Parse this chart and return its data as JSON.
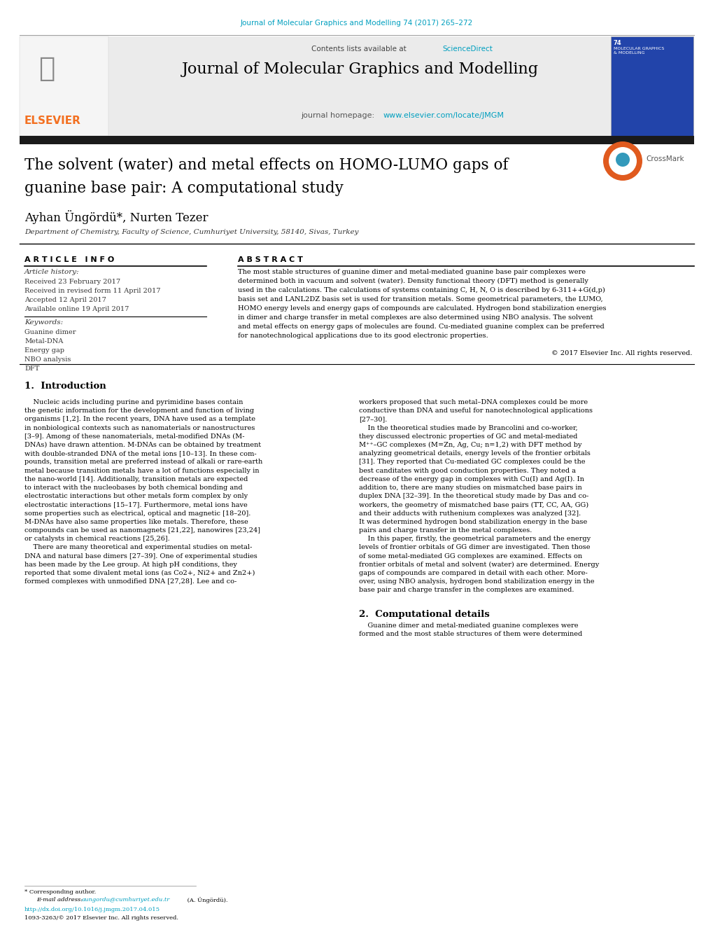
{
  "page_width": 10.2,
  "page_height": 13.51,
  "dpi": 100,
  "bg_color": "#ffffff",
  "header_citation": "Journal of Molecular Graphics and Modelling 74 (2017) 265–272",
  "header_citation_color": "#009FBF",
  "journal_header_bg": "#ebebeb",
  "journal_title": "Journal of Molecular Graphics and Modelling",
  "journal_title_color": "#000000",
  "journal_homepage_url": "www.elsevier.com/locate/JMGM",
  "journal_homepage_url_color": "#009FBF",
  "elsevier_color": "#F37021",
  "header_bar_color": "#1a1a1a",
  "article_title_line1": "The solvent (water) and metal effects on HOMO-LUMO gaps of",
  "article_title_line2": "guanine base pair: A computational study",
  "authors": "Ayhan Üngördü*, Nurten Tezer",
  "affiliation": "Department of Chemistry, Faculty of Science, Cumhuriyet University, 58140, Sivas, Turkey",
  "article_info_label": "A R T I C L E   I N F O",
  "abstract_label": "A B S T R A C T",
  "article_history_label": "Article history:",
  "received": "Received 23 February 2017",
  "received_revised": "Received in revised form 11 April 2017",
  "accepted": "Accepted 12 April 2017",
  "available": "Available online 19 April 2017",
  "keywords_label": "Keywords:",
  "keywords": [
    "Guanine dimer",
    "Metal-DNA",
    "Energy gap",
    "NBO analysis",
    "DFT"
  ],
  "abstract_lines": [
    "The most stable structures of guanine dimer and metal-mediated guanine base pair complexes were",
    "determined both in vacuum and solvent (water). Density functional theory (DFT) method is generally",
    "used in the calculations. The calculations of systems containing C, H, N, O is described by 6-311++G(d,p)",
    "basis set and LANL2DZ basis set is used for transition metals. Some geometrical parameters, the LUMO,",
    "HOMO energy levels and energy gaps of compounds are calculated. Hydrogen bond stabilization energies",
    "in dimer and charge transfer in metal complexes are also determined using NBO analysis. The solvent",
    "and metal effects on energy gaps of molecules are found. Cu-mediated guanine complex can be preferred",
    "for nanotechnological applications due to its good electronic properties."
  ],
  "copyright": "© 2017 Elsevier Inc. All rights reserved.",
  "section1_title": "1.  Introduction",
  "intro_col1_lines": [
    "    Nucleic acids including purine and pyrimidine bases contain",
    "the genetic information for the development and function of living",
    "organisms [1,2]. In the recent years, DNA have used as a template",
    "in nonbiological contexts such as nanomaterials or nanostructures",
    "[3–9]. Among of these nanomaterials, metal-modified DNAs (M-",
    "DNAs) have drawn attention. M-DNAs can be obtained by treatment",
    "with double-stranded DNA of the metal ions [10–13]. In these com-",
    "pounds, transition metal are preferred instead of alkali or rare-earth",
    "metal because transition metals have a lot of functions especially in",
    "the nano-world [14]. Additionally, transition metals are expected",
    "to interact with the nucleobases by both chemical bonding and",
    "electrostatic interactions but other metals form complex by only",
    "electrostatic interactions [15–17]. Furthermore, metal ions have",
    "some properties such as electrical, optical and magnetic [18–20].",
    "M-DNAs have also same properties like metals. Therefore, these",
    "compounds can be used as nanomagnets [21,22], nanowires [23,24]",
    "or catalysts in chemical reactions [25,26].",
    "    There are many theoretical and experimental studies on metal-",
    "DNA and natural base dimers [27–39]. One of experimental studies",
    "has been made by the Lee group. At high pH conditions, they",
    "reported that some divalent metal ions (as Co2+, Ni2+ and Zn2+)",
    "formed complexes with unmodified DNA [27,28]. Lee and co-"
  ],
  "intro_col2_lines": [
    "workers proposed that such metal–DNA complexes could be more",
    "conductive than DNA and useful for nanotechnological applications",
    "[27–30].",
    "    In the theoretical studies made by Brancolini and co-worker,",
    "they discussed electronic properties of GC and metal-mediated",
    "M⁺⁺–GC complexes (M=Zn, Ag, Cu; n=1,2) with DFT method by",
    "analyzing geometrical details, energy levels of the frontier orbitals",
    "[31]. They reported that Cu-mediated GC complexes could be the",
    "best canditates with good conduction properties. They noted a",
    "decrease of the energy gap in complexes with Cu(I) and Ag(I). In",
    "addition to, there are many studies on mismatched base pairs in",
    "duplex DNA [32–39]. In the theoretical study made by Das and co-",
    "workers, the geometry of mismatched base pairs (TT, CC, AA, GG)",
    "and their adducts with ruthenium complexes was analyzed [32].",
    "It was determined hydrogen bond stabilization energy in the base",
    "pairs and charge transfer in the metal complexes.",
    "    In this paper, firstly, the geometrical parameters and the energy",
    "levels of frontier orbitals of GG dimer are investigated. Then those",
    "of some metal-mediated GG complexes are examined. Effects on",
    "frontier orbitals of metal and solvent (water) are determined. Energy",
    "gaps of compounds are compared in detail with each other. More-",
    "over, using NBO analysis, hydrogen bond stabilization energy in the",
    "base pair and charge transfer in the complexes are examined."
  ],
  "section2_title": "2.  Computational details",
  "comp_col2_lines": [
    "    Guanine dimer and metal-mediated guanine complexes were",
    "formed and the most stable structures of them were determined"
  ],
  "footer_star": "* Corresponding author.",
  "footer_email_label": "E-mail address: ",
  "footer_email": "aungordu@cumhuriyet.edu.tr",
  "footer_email_suffix": " (A. Üngördü).",
  "footer_doi": "http://dx.doi.org/10.1016/j.jmgm.2017.04.015",
  "footer_issn": "1093-3263/© 2017 Elsevier Inc. All rights reserved.",
  "ref_color": "#009FBF",
  "text_color": "#000000",
  "body_text_color": "#1a1a1a"
}
